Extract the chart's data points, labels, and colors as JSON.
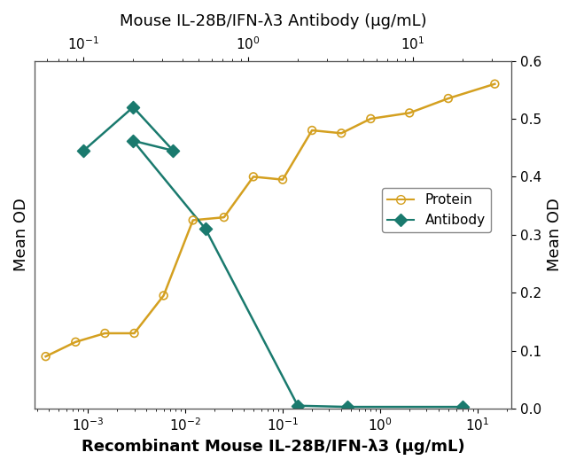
{
  "title_top": "Mouse IL-28B/IFN-λ3 Antibody (μg/mL)",
  "xlabel_bottom": "Recombinant Mouse IL-28B/IFN-λ3 (μg/mL)",
  "ylabel_left": "Mean OD",
  "ylabel_right": "Mean OD",
  "ylim": [
    0.0,
    0.6
  ],
  "yticks": [
    0.0,
    0.1,
    0.2,
    0.3,
    0.4,
    0.5,
    0.6
  ],
  "protein_x": [
    0.00037,
    0.00075,
    0.0015,
    0.003,
    0.006,
    0.012,
    0.025,
    0.05,
    0.1,
    0.2,
    0.4,
    0.8,
    2.0,
    5.0,
    15.0
  ],
  "protein_y": [
    0.09,
    0.115,
    0.13,
    0.13,
    0.195,
    0.325,
    0.33,
    0.4,
    0.395,
    0.48,
    0.475,
    0.5,
    0.51,
    0.535,
    0.56
  ],
  "protein_xlim_log": [
    -3.55,
    1.35
  ],
  "protein_color": "#D4A020",
  "antibody_x": [
    0.1,
    0.2,
    0.35,
    0.2,
    0.55,
    2.0,
    4.0,
    20.0
  ],
  "antibody_y": [
    0.445,
    0.52,
    0.445,
    0.462,
    0.31,
    0.005,
    0.003,
    0.003
  ],
  "antibody_xlim_log": [
    -1.3,
    1.6
  ],
  "antibody_color": "#1A7A6E",
  "legend_labels": [
    "Protein",
    "Antibody"
  ],
  "background_color": "#ffffff",
  "title_fontsize": 13,
  "label_fontsize": 13,
  "tick_fontsize": 11
}
